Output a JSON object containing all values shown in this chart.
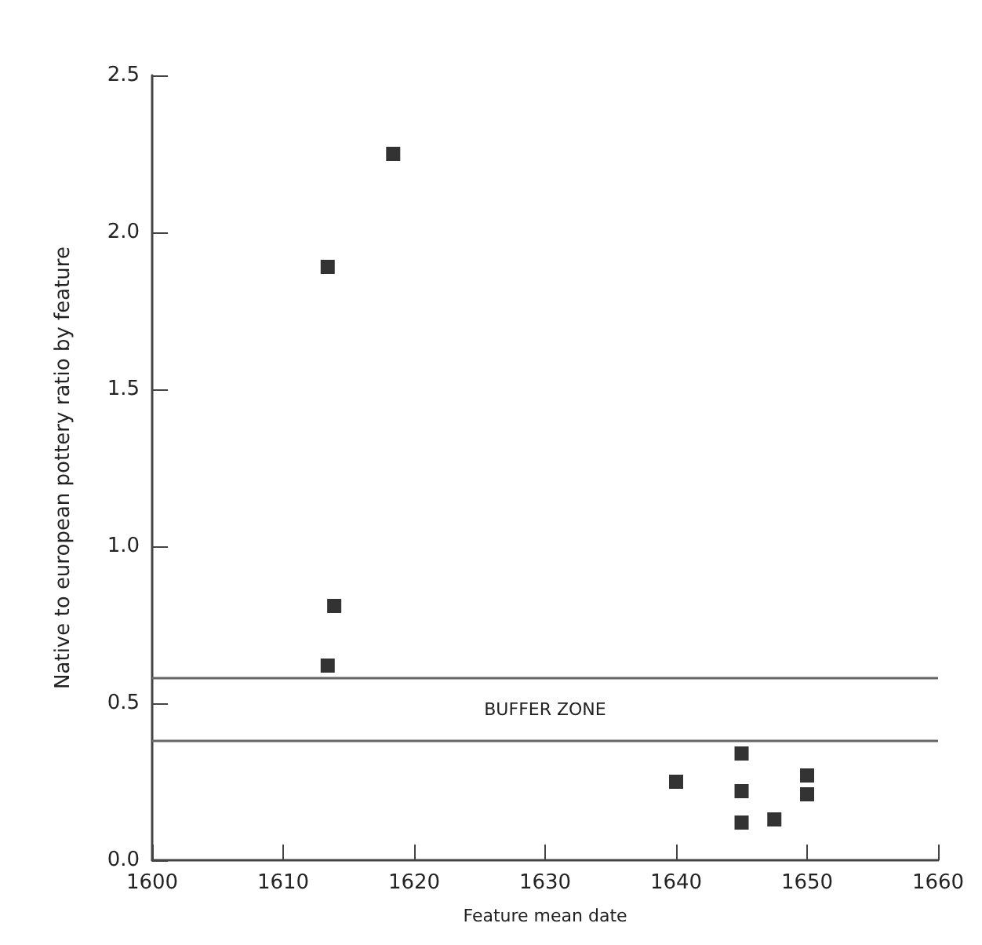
{
  "chart_data": {
    "type": "scatter",
    "xlabel": "Feature mean date",
    "ylabel": "Native to european pottery ratio by feature",
    "x": [
      1618.4,
      1613.4,
      1613.9,
      1613.4,
      1640,
      1645,
      1645,
      1645,
      1647.5,
      1650,
      1650
    ],
    "values": [
      2.25,
      1.89,
      0.81,
      0.62,
      0.25,
      0.34,
      0.22,
      0.12,
      0.13,
      0.27,
      0.21
    ],
    "color": "#000000",
    "marker": "square",
    "grid": false,
    "xlim": [
      1600,
      1660
    ],
    "xticks": [
      1600,
      1610,
      1620,
      1630,
      1640,
      1650,
      1660
    ],
    "ylim": [
      0,
      2.5
    ],
    "yticks": [
      {
        "value": 0,
        "label": "0.0"
      },
      {
        "value": 0.5,
        "label": "0.5"
      },
      {
        "value": 1,
        "label": "1.0"
      },
      {
        "value": 1.5,
        "label": "1.5"
      },
      {
        "value": 2,
        "label": "2.0"
      },
      {
        "value": 2.5,
        "label": "2.5"
      }
    ],
    "ref_lines": [
      {
        "axis": "y",
        "value": 0.58
      },
      {
        "axis": "y",
        "value": 0.38
      }
    ],
    "annotations": [
      "BUFFER ZONE"
    ]
  }
}
